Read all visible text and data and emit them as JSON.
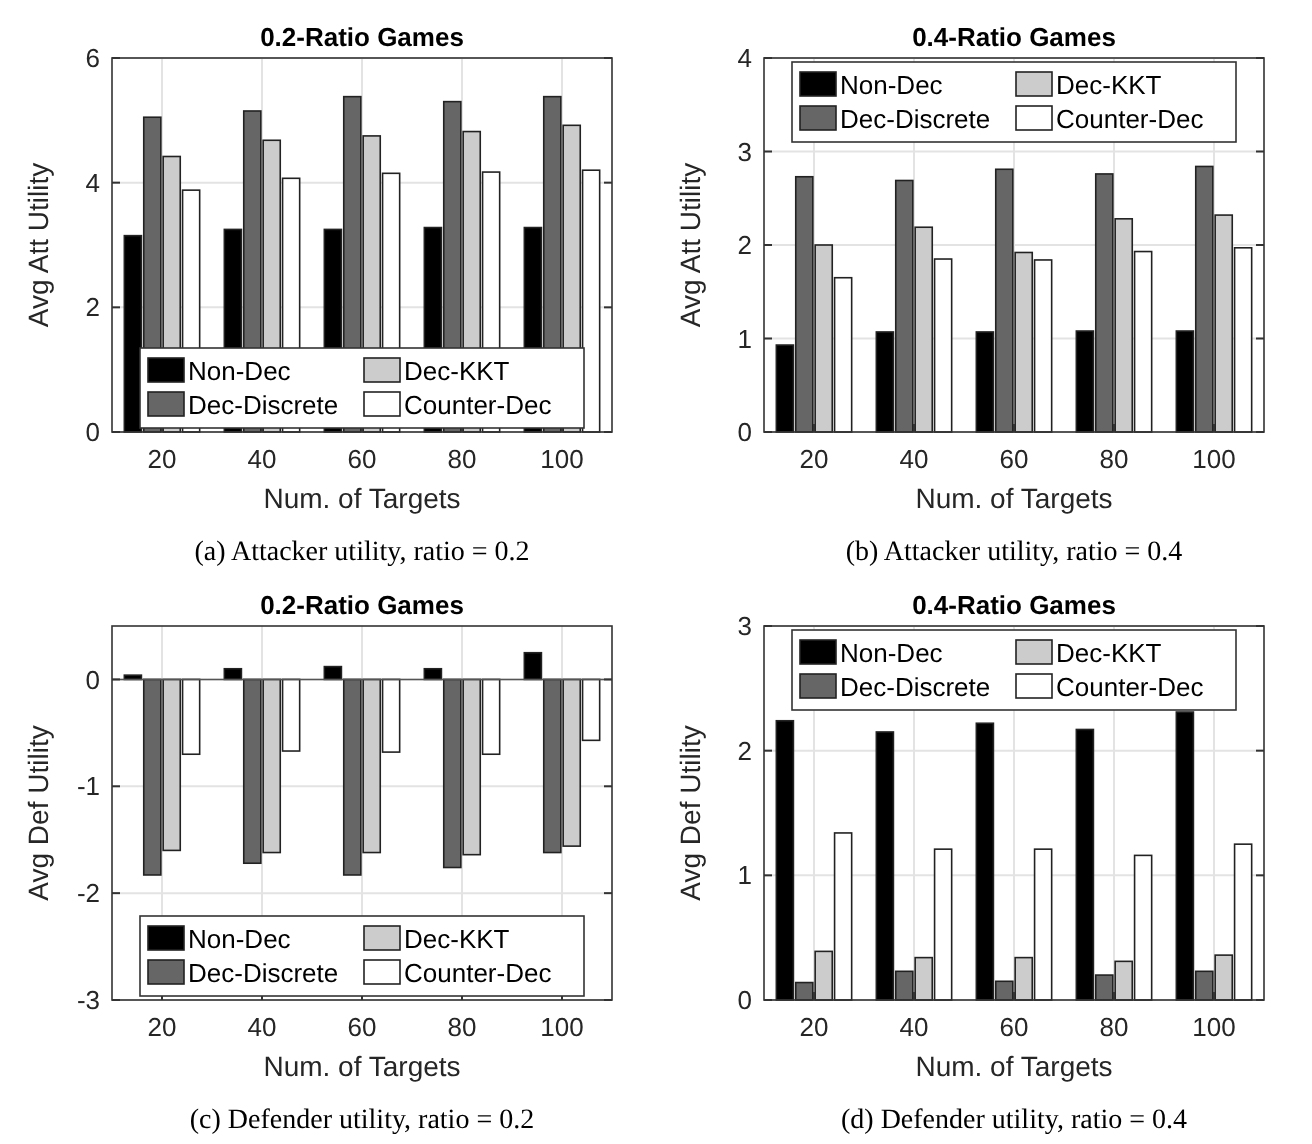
{
  "chart_data": [
    {
      "type": "bar",
      "title": "0.2-Ratio Games",
      "xlabel": "Num. of Targets",
      "ylabel": "Avg Att Utility",
      "categories": [
        "20",
        "40",
        "60",
        "80",
        "100"
      ],
      "ylim": [
        0,
        6
      ],
      "yticks": [
        0,
        2,
        4,
        6
      ],
      "grid": true,
      "legend": "bottom",
      "annotations": [
        "(a)  Attacker utility, ratio = 0.2"
      ],
      "series": [
        {
          "name": "Non-Dec",
          "color": "#000000",
          "values": [
            3.15,
            3.25,
            3.25,
            3.28,
            3.28
          ]
        },
        {
          "name": "Dec-Discrete",
          "color": "#666666",
          "values": [
            5.05,
            5.15,
            5.38,
            5.3,
            5.38
          ]
        },
        {
          "name": "Dec-KKT",
          "color": "#cccccc",
          "values": [
            4.42,
            4.68,
            4.75,
            4.82,
            4.92
          ]
        },
        {
          "name": "Counter-Dec",
          "color": "#ffffff",
          "values": [
            3.88,
            4.07,
            4.15,
            4.17,
            4.2
          ]
        }
      ]
    },
    {
      "type": "bar",
      "title": "0.4-Ratio Games",
      "xlabel": "Num. of Targets",
      "ylabel": "Avg Att Utility",
      "categories": [
        "20",
        "40",
        "60",
        "80",
        "100"
      ],
      "ylim": [
        0,
        4
      ],
      "yticks": [
        0,
        1,
        2,
        3,
        4
      ],
      "grid": true,
      "legend": "top",
      "annotations": [
        "(b)  Attacker utility, ratio = 0.4"
      ],
      "series": [
        {
          "name": "Non-Dec",
          "color": "#000000",
          "values": [
            0.93,
            1.07,
            1.07,
            1.08,
            1.08
          ]
        },
        {
          "name": "Dec-Discrete",
          "color": "#666666",
          "values": [
            2.73,
            2.69,
            2.81,
            2.76,
            2.84
          ]
        },
        {
          "name": "Dec-KKT",
          "color": "#cccccc",
          "values": [
            2.0,
            2.19,
            1.92,
            2.28,
            2.32
          ]
        },
        {
          "name": "Counter-Dec",
          "color": "#ffffff",
          "values": [
            1.65,
            1.85,
            1.84,
            1.93,
            1.97
          ]
        }
      ]
    },
    {
      "type": "bar",
      "title": "0.2-Ratio Games",
      "xlabel": "Num. of Targets",
      "ylabel": "Avg Def Utility",
      "categories": [
        "20",
        "40",
        "60",
        "80",
        "100"
      ],
      "ylim": [
        -3,
        0.5
      ],
      "yticks": [
        -3,
        -2,
        -1,
        0
      ],
      "grid": true,
      "legend": "bottom",
      "annotations": [
        "(c)  Defender utility, ratio = 0.2"
      ],
      "series": [
        {
          "name": "Non-Dec",
          "color": "#000000",
          "values": [
            0.04,
            0.1,
            0.12,
            0.1,
            0.25
          ]
        },
        {
          "name": "Dec-Discrete",
          "color": "#666666",
          "values": [
            -1.83,
            -1.72,
            -1.83,
            -1.76,
            -1.62
          ]
        },
        {
          "name": "Dec-KKT",
          "color": "#cccccc",
          "values": [
            -1.6,
            -1.62,
            -1.62,
            -1.64,
            -1.56
          ]
        },
        {
          "name": "Counter-Dec",
          "color": "#ffffff",
          "values": [
            -0.7,
            -0.67,
            -0.68,
            -0.7,
            -0.57
          ]
        }
      ]
    },
    {
      "type": "bar",
      "title": "0.4-Ratio Games",
      "xlabel": "Num. of Targets",
      "ylabel": "Avg Def Utility",
      "categories": [
        "20",
        "40",
        "60",
        "80",
        "100"
      ],
      "ylim": [
        0,
        3
      ],
      "yticks": [
        0,
        1,
        2,
        3
      ],
      "grid": true,
      "legend": "top",
      "annotations": [
        "(d)  Defender utility, ratio = 0.4"
      ],
      "series": [
        {
          "name": "Non-Dec",
          "color": "#000000",
          "values": [
            2.24,
            2.15,
            2.22,
            2.17,
            2.31
          ]
        },
        {
          "name": "Dec-Discrete",
          "color": "#666666",
          "values": [
            0.14,
            0.23,
            0.15,
            0.2,
            0.23
          ]
        },
        {
          "name": "Dec-KKT",
          "color": "#cccccc",
          "values": [
            0.39,
            0.34,
            0.34,
            0.31,
            0.36
          ]
        },
        {
          "name": "Counter-Dec",
          "color": "#ffffff",
          "values": [
            1.34,
            1.21,
            1.21,
            1.16,
            1.25
          ]
        }
      ]
    }
  ]
}
